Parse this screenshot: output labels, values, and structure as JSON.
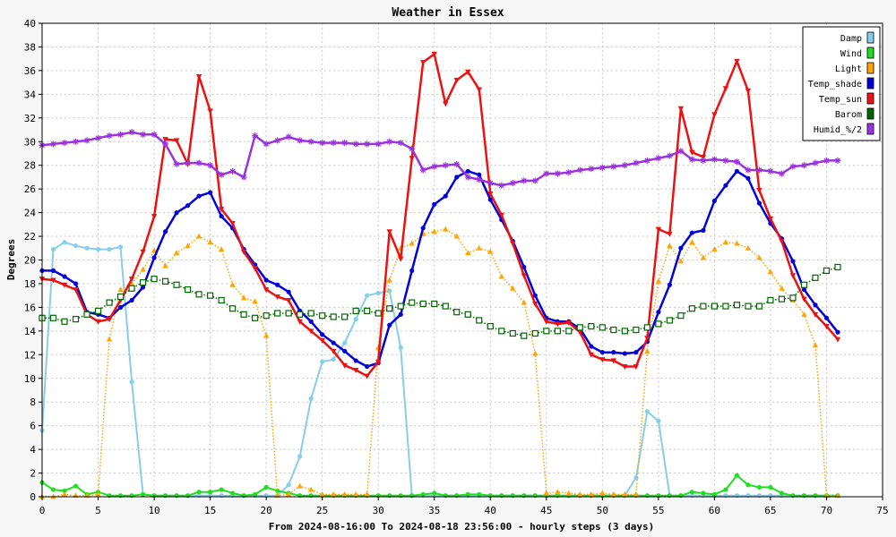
{
  "chart_data": {
    "type": "line",
    "title": "Weather in Essex",
    "xlabel": "From 2024-08-16:00 To 2024-08-18 23:56:00 - hourly steps (3 days)",
    "ylabel": "Degrees",
    "xlim": [
      0,
      75
    ],
    "ylim": [
      0,
      40
    ],
    "xticks": [
      0,
      5,
      10,
      15,
      20,
      25,
      30,
      35,
      40,
      45,
      50,
      55,
      60,
      65,
      70,
      75
    ],
    "yticks": [
      0,
      2,
      4,
      6,
      8,
      10,
      12,
      14,
      16,
      18,
      20,
      22,
      24,
      26,
      28,
      30,
      32,
      34,
      36,
      38,
      40
    ],
    "grid": true,
    "legend_position": "top-right",
    "series": [
      {
        "name": "Damp",
        "color": "#87ceeb",
        "marker": "circle",
        "style": "solid",
        "width": 2,
        "values": [
          5.6,
          20.9,
          21.5,
          21.2,
          21.0,
          20.9,
          20.9,
          21.1,
          9.7,
          0.2,
          0.1,
          0.1,
          0.1,
          0.1,
          0.1,
          0.1,
          0.1,
          0.1,
          0.1,
          0.1,
          0.1,
          0.1,
          1.0,
          3.4,
          8.3,
          11.4,
          11.6,
          13.0,
          15.0,
          17.0,
          17.2,
          17.4,
          12.6,
          0.1,
          0.1,
          0.1,
          0.1,
          0.1,
          0.1,
          0.1,
          0.1,
          0.1,
          0.1,
          0.1,
          0.1,
          0.1,
          0.1,
          0.1,
          0.1,
          0.1,
          0.1,
          0.1,
          0.1,
          1.6,
          7.2,
          6.4,
          0.1,
          0.1,
          0.1,
          0.1,
          0.1,
          0.1,
          0.1,
          0.1,
          0.1,
          0.1,
          0.1,
          0.1,
          0.1,
          0.1,
          0.1,
          0.1
        ]
      },
      {
        "name": "Wind",
        "color": "#22dd22",
        "marker": "circle",
        "style": "solid",
        "width": 2,
        "values": [
          1.2,
          0.6,
          0.5,
          0.9,
          0.2,
          0.4,
          0.1,
          0.1,
          0.1,
          0.2,
          0.1,
          0.1,
          0.1,
          0.1,
          0.4,
          0.4,
          0.6,
          0.3,
          0.1,
          0.2,
          0.8,
          0.5,
          0.3,
          0.1,
          0.1,
          0.1,
          0.1,
          0.1,
          0.1,
          0.1,
          0.1,
          0.1,
          0.1,
          0.1,
          0.2,
          0.3,
          0.1,
          0.1,
          0.2,
          0.2,
          0.1,
          0.1,
          0.1,
          0.1,
          0.1,
          0.1,
          0.1,
          0.1,
          0.1,
          0.1,
          0.1,
          0.1,
          0.1,
          0.1,
          0.1,
          0.1,
          0.1,
          0.1,
          0.4,
          0.3,
          0.2,
          0.6,
          1.8,
          1.0,
          0.8,
          0.8,
          0.3,
          0.1,
          0.1,
          0.1,
          0.1,
          0.1
        ]
      },
      {
        "name": "Light",
        "color": "#ffa500",
        "marker": "triangle",
        "style": "dotted",
        "width": 1.5,
        "values": [
          0,
          0,
          0.2,
          0.1,
          0.1,
          0.2,
          13.3,
          17.5,
          18.0,
          19.2,
          20.8,
          19.5,
          20.6,
          21.2,
          22.0,
          21.5,
          20.9,
          17.9,
          16.8,
          16.5,
          13.6,
          0.1,
          0.2,
          0.9,
          0.6,
          0.2,
          0.2,
          0.2,
          0.2,
          0.2,
          12.6,
          18.3,
          21.0,
          21.4,
          22.2,
          22.4,
          22.6,
          22.0,
          20.6,
          21.0,
          20.7,
          18.6,
          17.6,
          16.4,
          12.1,
          0.3,
          0.4,
          0.3,
          0.2,
          0.2,
          0.3,
          0.2,
          0.2,
          0.2,
          12.3,
          18.2,
          21.2,
          19.9,
          21.5,
          20.2,
          20.9,
          21.5,
          21.4,
          21.0,
          20.2,
          19.0,
          17.6,
          16.6,
          15.4,
          12.8,
          0.1,
          0.1
        ]
      },
      {
        "name": "Temp_shade",
        "color": "#0000dd",
        "marker": "circle",
        "style": "solid",
        "width": 2.5,
        "values": [
          19.1,
          19.1,
          18.6,
          18.0,
          15.6,
          15.4,
          15.1,
          16.0,
          16.6,
          17.7,
          20.2,
          22.4,
          24.0,
          24.6,
          25.4,
          25.7,
          23.7,
          22.7,
          20.9,
          19.6,
          18.3,
          17.9,
          17.3,
          15.7,
          14.8,
          13.7,
          13.0,
          12.3,
          11.5,
          11.0,
          11.3,
          14.5,
          15.4,
          19.1,
          22.7,
          24.7,
          25.4,
          27.0,
          27.5,
          27.2,
          25.1,
          23.4,
          21.6,
          19.4,
          17.0,
          15.1,
          14.8,
          14.8,
          14.2,
          12.7,
          12.2,
          12.2,
          12.1,
          12.2,
          13.1,
          15.6,
          17.9,
          21.0,
          22.3,
          22.5,
          25.0,
          26.3,
          27.5,
          26.9,
          24.8,
          23.1,
          21.8,
          19.9,
          17.5,
          16.2,
          15.1,
          13.9
        ]
      },
      {
        "name": "Temp_sun",
        "color": "#ee1111",
        "marker": "triangle-down",
        "style": "solid",
        "width": 2.5,
        "values": [
          18.4,
          18.3,
          17.9,
          17.5,
          15.4,
          14.8,
          15.0,
          16.6,
          18.4,
          20.7,
          23.7,
          30.2,
          30.1,
          28.1,
          35.5,
          32.6,
          24.3,
          23.1,
          20.7,
          19.3,
          17.5,
          16.9,
          16.6,
          14.8,
          14.0,
          13.2,
          12.3,
          11.1,
          10.7,
          10.2,
          11.4,
          22.4,
          20.1,
          28.6,
          36.7,
          37.4,
          33.2,
          35.2,
          35.9,
          34.4,
          25.6,
          23.8,
          21.4,
          18.7,
          16.3,
          14.8,
          14.6,
          14.7,
          13.9,
          12.0,
          11.6,
          11.5,
          11.0,
          11.0,
          13.4,
          22.6,
          22.2,
          32.8,
          29.1,
          28.7,
          32.3,
          34.5,
          36.8,
          34.3,
          25.9,
          23.5,
          21.6,
          18.7,
          16.7,
          15.4,
          14.4,
          13.3
        ]
      },
      {
        "name": "Barom",
        "color": "#006600",
        "marker": "square",
        "style": "dotted",
        "width": 1.5,
        "values": [
          15.1,
          15.1,
          14.8,
          15.0,
          15.4,
          15.7,
          16.4,
          16.9,
          17.6,
          18.1,
          18.4,
          18.2,
          17.9,
          17.5,
          17.1,
          17.0,
          16.6,
          15.9,
          15.4,
          15.1,
          15.3,
          15.5,
          15.5,
          15.4,
          15.5,
          15.3,
          15.2,
          15.2,
          15.7,
          15.7,
          15.5,
          15.9,
          16.1,
          16.4,
          16.3,
          16.3,
          16.1,
          15.6,
          15.4,
          14.9,
          14.4,
          14.0,
          13.8,
          13.6,
          13.8,
          14.0,
          14.0,
          14.0,
          14.3,
          14.4,
          14.3,
          14.1,
          14.0,
          14.1,
          14.3,
          14.6,
          14.9,
          15.3,
          15.9,
          16.1,
          16.1,
          16.1,
          16.2,
          16.1,
          16.1,
          16.6,
          16.7,
          16.8,
          17.9,
          18.5,
          19.1,
          19.4
        ]
      },
      {
        "name": "Humid_%/2",
        "color": "#9933dd",
        "marker": "star",
        "style": "solid",
        "width": 2.5,
        "values": [
          29.7,
          29.8,
          29.9,
          30.0,
          30.1,
          30.3,
          30.5,
          30.6,
          30.8,
          30.6,
          30.6,
          29.8,
          28.1,
          28.2,
          28.2,
          28.0,
          27.2,
          27.5,
          27.0,
          30.5,
          29.8,
          30.1,
          30.4,
          30.1,
          30.0,
          29.9,
          29.9,
          29.9,
          29.8,
          29.8,
          29.8,
          30.0,
          29.9,
          29.4,
          27.6,
          27.9,
          28.0,
          28.1,
          27.0,
          26.8,
          26.5,
          26.3,
          26.5,
          26.7,
          26.7,
          27.3,
          27.3,
          27.4,
          27.6,
          27.7,
          27.8,
          27.9,
          28.0,
          28.2,
          28.4,
          28.6,
          28.8,
          29.2,
          28.5,
          28.4,
          28.5,
          28.4,
          28.3,
          27.6,
          27.6,
          27.5,
          27.3,
          27.9,
          28.0,
          28.2,
          28.4,
          28.4
        ]
      }
    ]
  }
}
